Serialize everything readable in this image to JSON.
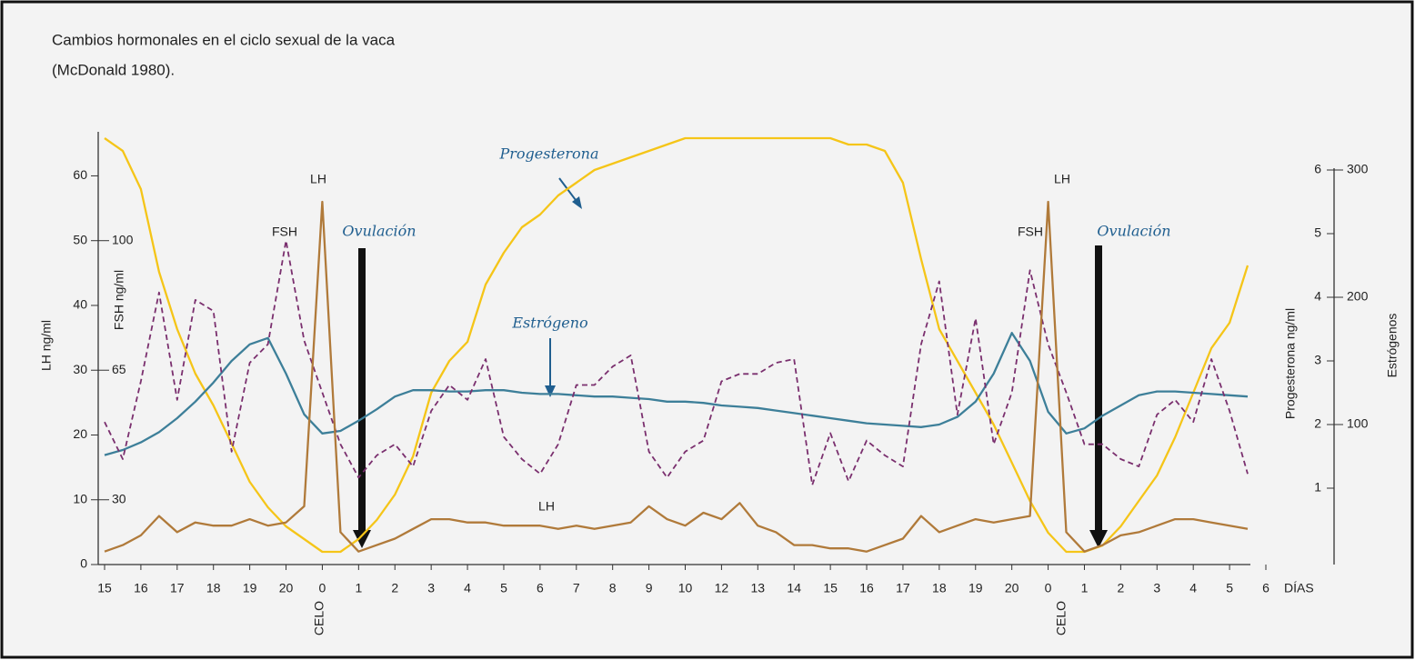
{
  "chart_data": {
    "type": "line",
    "title": "Cambios hormonales en el ciclo sexual de la vaca",
    "subtitle": "(McDonald 1980).",
    "xlabel": "DÍAS",
    "ylabel": "LH ng/ml",
    "xlim": [
      0,
      32
    ],
    "xticks": [
      {
        "value": 0,
        "label": "15"
      },
      {
        "value": 1,
        "label": "16"
      },
      {
        "value": 2,
        "label": "17"
      },
      {
        "value": 3,
        "label": "18"
      },
      {
        "value": 4,
        "label": "19"
      },
      {
        "value": 5,
        "label": "20"
      },
      {
        "value": 6,
        "label": "0"
      },
      {
        "value": 7,
        "label": "1"
      },
      {
        "value": 8,
        "label": "2"
      },
      {
        "value": 9,
        "label": "3"
      },
      {
        "value": 10,
        "label": "4"
      },
      {
        "value": 11,
        "label": "5"
      },
      {
        "value": 12,
        "label": "6"
      },
      {
        "value": 13,
        "label": "7"
      },
      {
        "value": 14,
        "label": "8"
      },
      {
        "value": 15,
        "label": "9"
      },
      {
        "value": 16,
        "label": "10"
      },
      {
        "value": 17,
        "label": "12"
      },
      {
        "value": 18,
        "label": "13"
      },
      {
        "value": 19,
        "label": "14"
      },
      {
        "value": 20,
        "label": "15"
      },
      {
        "value": 21,
        "label": "16"
      },
      {
        "value": 22,
        "label": "17"
      },
      {
        "value": 23,
        "label": "18"
      },
      {
        "value": 24,
        "label": "19"
      },
      {
        "value": 25,
        "label": "20"
      },
      {
        "value": 26,
        "label": "0"
      },
      {
        "value": 27,
        "label": "1"
      },
      {
        "value": 28,
        "label": "2"
      },
      {
        "value": 29,
        "label": "3"
      },
      {
        "value": 30,
        "label": "4"
      },
      {
        "value": 31,
        "label": "5"
      },
      {
        "value": 32,
        "label": "6"
      }
    ],
    "ylim": [
      0,
      66.8
    ],
    "yticks": [
      0,
      10,
      20,
      30,
      40,
      50,
      60
    ],
    "fsh_axis": {
      "label": "FSH ng/ml",
      "lim": [
        12.5,
        129.4
      ],
      "ticks": [
        30,
        65,
        100
      ]
    },
    "y2label": "Progesterona ng/ml",
    "y2lim": [
      -0.2,
      6.6
    ],
    "y2ticks": [
      1,
      2,
      3,
      4,
      5,
      6
    ],
    "estr_axis": {
      "label": "Estrógenos",
      "lim": [
        -10,
        330
      ],
      "ticks": [
        100,
        200,
        300
      ]
    },
    "x": [
      0,
      0.5,
      1,
      1.5,
      2,
      2.5,
      3,
      3.5,
      4,
      4.5,
      5,
      5.5,
      6,
      6.5,
      7,
      7.5,
      8,
      8.5,
      9,
      9.5,
      10,
      10.5,
      11,
      11.5,
      12,
      12.5,
      13,
      13.5,
      14,
      14.5,
      15,
      15.5,
      16,
      16.5,
      17,
      17.5,
      18,
      18.5,
      19,
      19.5,
      20,
      20.5,
      21,
      21.5,
      22,
      22.5,
      23,
      23.5,
      24,
      24.5,
      25,
      25.5,
      26,
      26.5,
      27,
      27.5,
      28,
      28.5,
      29,
      29.5,
      30,
      30.5,
      31,
      31.5
    ],
    "series": [
      {
        "name": "Progesterona",
        "axis": "y2",
        "color": "#f5c518",
        "dashed": false,
        "values": [
          6.5,
          6.3,
          5.7,
          4.4,
          3.5,
          2.8,
          2.3,
          1.7,
          1.1,
          0.7,
          0.4,
          0.2,
          0.0,
          0.0,
          0.2,
          0.5,
          0.9,
          1.5,
          2.5,
          3.0,
          3.3,
          4.2,
          4.7,
          5.1,
          5.3,
          5.6,
          5.8,
          6.0,
          6.1,
          6.2,
          6.3,
          6.4,
          6.5,
          6.5,
          6.5,
          6.5,
          6.5,
          6.5,
          6.5,
          6.5,
          6.5,
          6.4,
          6.4,
          6.3,
          5.8,
          4.6,
          3.5,
          3.0,
          2.5,
          2.0,
          1.4,
          0.8,
          0.3,
          0.0,
          0.0,
          0.1,
          0.4,
          0.8,
          1.2,
          1.8,
          2.5,
          3.2,
          3.6,
          4.5
        ]
      },
      {
        "name": "Estrógeno",
        "axis": "estr",
        "color": "#3d7f99",
        "dashed": false,
        "values": [
          76,
          80,
          86,
          94,
          105,
          118,
          133,
          150,
          163,
          168,
          140,
          108,
          93,
          95,
          103,
          112,
          122,
          127,
          127,
          126,
          126,
          127,
          127,
          125,
          124,
          124,
          123,
          122,
          122,
          121,
          120,
          118,
          118,
          117,
          115,
          114,
          113,
          111,
          109,
          107,
          105,
          103,
          101,
          100,
          99,
          98,
          100,
          106,
          118,
          140,
          172,
          150,
          110,
          93,
          97,
          107,
          115,
          123,
          126,
          126,
          125,
          124,
          123,
          122
        ]
      },
      {
        "name": "FSH",
        "axis": "fsh",
        "color": "#7a2f6e",
        "dashed": true,
        "values": [
          51,
          41,
          62,
          86,
          57,
          84,
          81,
          43,
          67,
          72,
          100,
          73,
          59,
          45,
          36,
          42,
          45,
          39,
          54,
          61,
          57,
          68,
          47,
          41,
          37,
          45,
          61,
          61,
          66,
          69,
          43,
          36,
          43,
          46,
          62,
          64,
          64,
          67,
          68,
          34,
          48,
          35,
          46,
          42,
          39,
          72,
          89,
          53,
          79,
          45,
          59,
          92,
          72,
          59,
          45,
          45,
          41,
          39,
          53,
          57,
          51,
          68,
          54,
          37
        ]
      },
      {
        "name": "LH",
        "axis": "y",
        "color": "#b07a3a",
        "dashed": false,
        "values": [
          2,
          3,
          4.5,
          7.5,
          5,
          6.5,
          6,
          6,
          7,
          6,
          6.5,
          9,
          56,
          5,
          2,
          3,
          4,
          5.5,
          7,
          7,
          6.5,
          6.5,
          6,
          6,
          6,
          5.5,
          6,
          5.5,
          6,
          6.5,
          9,
          7,
          6,
          8,
          7,
          9.5,
          6,
          5,
          3,
          3,
          2.5,
          2.5,
          2,
          3,
          4,
          7.5,
          5,
          6,
          7,
          6.5,
          7,
          7.5,
          56,
          5,
          2,
          3,
          4.5,
          5,
          6,
          7,
          7,
          6.5,
          6,
          5.5
        ]
      }
    ],
    "annotations": [
      "Progesterona",
      "Estrógeno",
      "Ovulación",
      "Ovulación",
      "LH",
      "LH",
      "FSH",
      "FSH",
      "LH",
      "CELO",
      "CELO"
    ]
  }
}
